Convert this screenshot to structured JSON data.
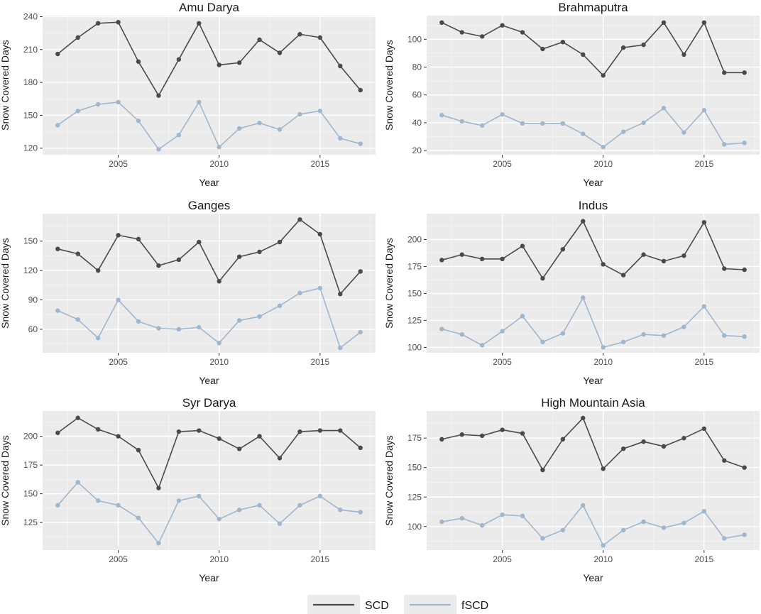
{
  "colors": {
    "panel_bg": "#ebebeb",
    "grid_major": "#ffffff",
    "grid_minor": "#f5f5f5",
    "scd": "#4a4a4a",
    "fscd": "#9fb6cf",
    "tick": "#333333"
  },
  "legend": {
    "items": [
      {
        "key": "scd",
        "label": "SCD"
      },
      {
        "key": "fscd",
        "label": "fSCD"
      }
    ]
  },
  "chart_data": [
    {
      "type": "line",
      "title": "Amu Darya",
      "xlabel": "Year",
      "ylabel": "Snow Covered Days",
      "x": [
        2002,
        2003,
        2004,
        2005,
        2006,
        2007,
        2008,
        2009,
        2010,
        2011,
        2012,
        2013,
        2014,
        2015,
        2016,
        2017
      ],
      "xlim": [
        2001.25,
        2017.75
      ],
      "xticks": [
        2005,
        2010,
        2015
      ],
      "ylim": [
        114,
        241
      ],
      "yticks": [
        120,
        150,
        180,
        210,
        240
      ],
      "series": [
        {
          "name": "SCD",
          "values": [
            206,
            221,
            234,
            235,
            199,
            168,
            201,
            234,
            196,
            198,
            219,
            207,
            224,
            221,
            195,
            173
          ]
        },
        {
          "name": "fSCD",
          "values": [
            141,
            154,
            160,
            162,
            145,
            119,
            132,
            162,
            121,
            138,
            143,
            137,
            151,
            154,
            129,
            124
          ]
        }
      ]
    },
    {
      "type": "line",
      "title": "Brahmaputra",
      "xlabel": "Year",
      "ylabel": "Snow Covered Days",
      "x": [
        2002,
        2003,
        2004,
        2005,
        2006,
        2007,
        2008,
        2009,
        2010,
        2011,
        2012,
        2013,
        2014,
        2015,
        2016,
        2017
      ],
      "xlim": [
        2001.25,
        2017.75
      ],
      "xticks": [
        2005,
        2010,
        2015
      ],
      "ylim": [
        17,
        117
      ],
      "yticks": [
        20,
        40,
        60,
        80,
        100
      ],
      "series": [
        {
          "name": "SCD",
          "values": [
            112,
            105,
            102,
            110,
            105,
            93,
            98,
            89,
            74,
            94,
            96,
            112,
            89,
            112,
            76,
            76
          ]
        },
        {
          "name": "fSCD",
          "values": [
            45.5,
            41,
            38,
            46,
            39.5,
            39.5,
            39.5,
            32,
            22.5,
            33.5,
            40,
            50.5,
            33,
            49,
            24.5,
            25.5
          ]
        }
      ]
    },
    {
      "type": "line",
      "title": "Ganges",
      "xlabel": "Year",
      "ylabel": "Snow Covered Days",
      "x": [
        2002,
        2003,
        2004,
        2005,
        2006,
        2007,
        2008,
        2009,
        2010,
        2011,
        2012,
        2013,
        2014,
        2015,
        2016,
        2017
      ],
      "xlim": [
        2001.25,
        2017.75
      ],
      "xticks": [
        2005,
        2010,
        2015
      ],
      "ylim": [
        36,
        178
      ],
      "yticks": [
        60,
        90,
        120,
        150
      ],
      "series": [
        {
          "name": "SCD",
          "values": [
            142,
            137,
            120,
            156,
            152,
            125,
            131,
            149,
            109,
            134,
            139,
            149,
            172,
            157,
            96,
            119
          ]
        },
        {
          "name": "fSCD",
          "values": [
            79,
            70,
            51,
            90,
            68,
            61,
            60,
            62,
            46,
            69,
            73,
            84,
            97,
            102,
            41,
            57
          ]
        }
      ]
    },
    {
      "type": "line",
      "title": "Indus",
      "xlabel": "Year",
      "ylabel": "Snow Covered Days",
      "x": [
        2002,
        2003,
        2004,
        2005,
        2006,
        2007,
        2008,
        2009,
        2010,
        2011,
        2012,
        2013,
        2014,
        2015,
        2016,
        2017
      ],
      "xlim": [
        2001.25,
        2017.75
      ],
      "xticks": [
        2005,
        2010,
        2015
      ],
      "ylim": [
        95,
        224
      ],
      "yticks": [
        100,
        125,
        150,
        175,
        200
      ],
      "series": [
        {
          "name": "SCD",
          "values": [
            181,
            186,
            182,
            182,
            194,
            164,
            191,
            217,
            177,
            167,
            186,
            180,
            185,
            216,
            173,
            172
          ]
        },
        {
          "name": "fSCD",
          "values": [
            117,
            112,
            102,
            115,
            129,
            105,
            113,
            146,
            100,
            105,
            112,
            111,
            119,
            138,
            111,
            110
          ]
        }
      ]
    },
    {
      "type": "line",
      "title": "Syr Darya",
      "xlabel": "Year",
      "ylabel": "Snow Covered Days",
      "x": [
        2002,
        2003,
        2004,
        2005,
        2006,
        2007,
        2008,
        2009,
        2010,
        2011,
        2012,
        2013,
        2014,
        2015,
        2016,
        2017
      ],
      "xlim": [
        2001.25,
        2017.75
      ],
      "xticks": [
        2005,
        2010,
        2015
      ],
      "ylim": [
        101,
        222
      ],
      "yticks": [
        125,
        150,
        175,
        200
      ],
      "series": [
        {
          "name": "SCD",
          "values": [
            203,
            216,
            206,
            200,
            188,
            155,
            204,
            205,
            198,
            189,
            200,
            181,
            204,
            205,
            205,
            190
          ]
        },
        {
          "name": "fSCD",
          "values": [
            140,
            160,
            144,
            140,
            129,
            107,
            144,
            148,
            128,
            136,
            140,
            124,
            140,
            148,
            136,
            134
          ]
        }
      ]
    },
    {
      "type": "line",
      "title": "High Mountain Asia",
      "xlabel": "Year",
      "ylabel": "Snow Covered Days",
      "x": [
        2002,
        2003,
        2004,
        2005,
        2006,
        2007,
        2008,
        2009,
        2010,
        2011,
        2012,
        2013,
        2014,
        2015,
        2016,
        2017
      ],
      "xlim": [
        2001.25,
        2017.75
      ],
      "xticks": [
        2005,
        2010,
        2015
      ],
      "ylim": [
        80,
        198
      ],
      "yticks": [
        100,
        125,
        150,
        175
      ],
      "series": [
        {
          "name": "SCD",
          "values": [
            174,
            178,
            177,
            182,
            179,
            148,
            174,
            192,
            149,
            166,
            172,
            168,
            175,
            183,
            156,
            150
          ]
        },
        {
          "name": "fSCD",
          "values": [
            104,
            107,
            101,
            110,
            109,
            90,
            97,
            118,
            84,
            97,
            104,
            99,
            103,
            113,
            90,
            93
          ]
        }
      ]
    }
  ]
}
